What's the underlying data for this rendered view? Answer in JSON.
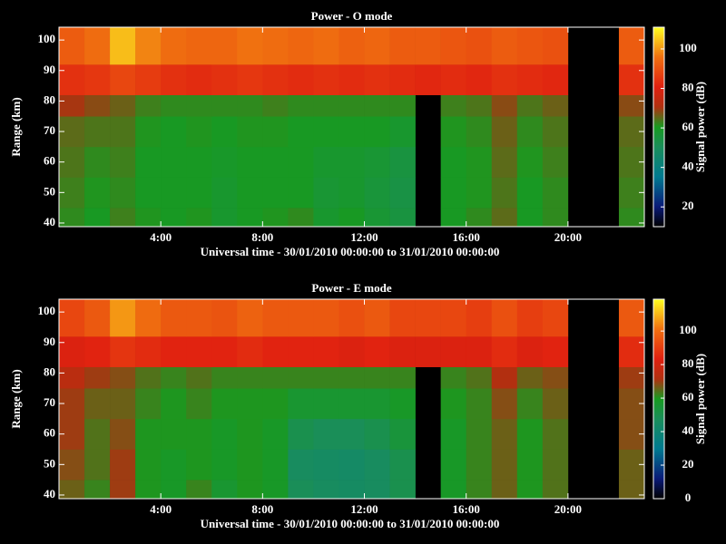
{
  "chart_data": [
    {
      "type": "heatmap",
      "title": "Power - O mode",
      "xlabel": "Universal time - 30/01/2010 00:00:00 to 31/01/2010 00:00:00",
      "ylabel": "Range (km)",
      "clabel": "Signal power (dB)",
      "xlim": [
        0,
        23
      ],
      "xticks": [
        {
          "value": 4,
          "label": "4:00"
        },
        {
          "value": 8,
          "label": "8:00"
        },
        {
          "value": 12,
          "label": "12:00"
        },
        {
          "value": 16,
          "label": "16:00"
        },
        {
          "value": 20,
          "label": "20:00"
        }
      ],
      "ylim": [
        38.8,
        104.2
      ],
      "yticks": [
        40,
        50,
        60,
        70,
        80,
        90,
        100
      ],
      "clim": [
        10,
        111
      ],
      "cticks": [
        20,
        40,
        60,
        80,
        100
      ],
      "colorscale": [
        [
          0,
          "#000000"
        ],
        [
          0.1,
          "#0a1a78"
        ],
        [
          0.25,
          "#007a90"
        ],
        [
          0.4,
          "#1a8e5a"
        ],
        [
          0.5,
          "#189a20"
        ],
        [
          0.6,
          "#b03010"
        ],
        [
          0.7,
          "#e02010"
        ],
        [
          0.85,
          "#f07010"
        ],
        [
          1,
          "#ffff20"
        ]
      ],
      "x_bins": [
        0,
        1,
        2,
        3,
        4,
        5,
        6,
        7,
        8,
        9,
        10,
        11,
        12,
        13,
        14,
        15,
        16,
        17,
        18,
        19,
        20,
        21,
        22,
        23
      ],
      "y_bins": [
        38.8,
        45,
        55,
        65,
        75,
        82,
        92,
        104.2
      ],
      "z": [
        [
          62,
          60,
          63,
          61,
          60,
          61,
          58,
          60,
          61,
          62,
          58,
          60,
          57,
          55,
          null,
          60,
          62,
          65,
          60,
          62,
          null,
          null,
          62
        ],
        [
          63,
          61,
          62,
          60,
          60,
          60,
          58,
          60,
          60,
          60,
          57,
          58,
          56,
          54,
          null,
          60,
          61,
          64,
          60,
          62,
          null,
          null,
          63
        ],
        [
          64,
          62,
          63,
          60,
          60,
          60,
          59,
          60,
          60,
          60,
          58,
          58,
          57,
          55,
          null,
          60,
          61,
          65,
          61,
          63,
          null,
          null,
          64
        ],
        [
          65,
          64,
          64,
          61,
          60,
          61,
          60,
          61,
          61,
          60,
          60,
          60,
          60,
          58,
          null,
          61,
          62,
          66,
          62,
          64,
          null,
          null,
          65
        ],
        [
          70,
          68,
          66,
          63,
          62,
          62,
          62,
          62,
          63,
          62,
          62,
          62,
          62,
          62,
          null,
          63,
          64,
          68,
          64,
          66,
          null,
          null,
          68
        ],
        [
          84,
          85,
          88,
          86,
          84,
          83,
          84,
          85,
          84,
          83,
          84,
          83,
          84,
          83,
          82,
          83,
          82,
          84,
          83,
          82,
          null,
          null,
          84
        ],
        [
          92,
          95,
          104,
          98,
          95,
          94,
          94,
          96,
          95,
          94,
          95,
          93,
          94,
          92,
          92,
          91,
          90,
          92,
          91,
          90,
          null,
          null,
          92
        ]
      ]
    },
    {
      "type": "heatmap",
      "title": "Power - E mode",
      "xlabel": "Universal time - 30/01/2010 00:00:00 to 31/01/2010 00:00:00",
      "ylabel": "Range (km)",
      "clabel": "Signal power (dB)",
      "xlim": [
        0,
        23
      ],
      "xticks": [
        {
          "value": 4,
          "label": "4:00"
        },
        {
          "value": 8,
          "label": "8:00"
        },
        {
          "value": 12,
          "label": "12:00"
        },
        {
          "value": 16,
          "label": "16:00"
        },
        {
          "value": 20,
          "label": "20:00"
        }
      ],
      "ylim": [
        38.8,
        104.2
      ],
      "yticks": [
        40,
        50,
        60,
        70,
        80,
        90,
        100
      ],
      "clim": [
        0,
        119
      ],
      "cticks": [
        0,
        20,
        40,
        60,
        80,
        100
      ],
      "colorscale": [
        [
          0,
          "#000000"
        ],
        [
          0.1,
          "#0a1a78"
        ],
        [
          0.25,
          "#007a90"
        ],
        [
          0.4,
          "#1a8e5a"
        ],
        [
          0.5,
          "#189a20"
        ],
        [
          0.6,
          "#b03010"
        ],
        [
          0.7,
          "#e02010"
        ],
        [
          0.85,
          "#f07010"
        ],
        [
          1,
          "#ffff20"
        ]
      ],
      "x_bins": [
        0,
        1,
        2,
        3,
        4,
        5,
        6,
        7,
        8,
        9,
        10,
        11,
        12,
        13,
        14,
        15,
        16,
        17,
        18,
        19,
        20,
        21,
        22,
        23
      ],
      "y_bins": [
        38.8,
        45,
        55,
        65,
        75,
        82,
        92,
        104.2
      ],
      "z": [
        [
          66,
          62,
          70,
          60,
          58,
          62,
          56,
          60,
          58,
          48,
          46,
          45,
          46,
          50,
          null,
          58,
          62,
          66,
          60,
          64,
          null,
          null,
          66
        ],
        [
          68,
          64,
          70,
          60,
          58,
          60,
          58,
          60,
          58,
          46,
          45,
          44,
          46,
          50,
          null,
          58,
          62,
          66,
          60,
          64,
          null,
          null,
          66
        ],
        [
          70,
          64,
          68,
          60,
          60,
          60,
          58,
          60,
          58,
          50,
          48,
          48,
          50,
          54,
          null,
          58,
          62,
          66,
          60,
          64,
          null,
          null,
          68
        ],
        [
          70,
          66,
          66,
          62,
          60,
          62,
          60,
          60,
          60,
          56,
          56,
          56,
          56,
          58,
          null,
          60,
          62,
          68,
          62,
          66,
          null,
          null,
          68
        ],
        [
          74,
          70,
          68,
          64,
          62,
          64,
          62,
          62,
          62,
          62,
          62,
          62,
          62,
          62,
          null,
          62,
          64,
          72,
          66,
          68,
          null,
          null,
          70
        ],
        [
          82,
          84,
          88,
          86,
          84,
          84,
          84,
          86,
          84,
          84,
          84,
          82,
          84,
          82,
          82,
          82,
          82,
          86,
          82,
          84,
          null,
          null,
          86
        ],
        [
          92,
          96,
          106,
          100,
          96,
          96,
          95,
          98,
          96,
          96,
          96,
          94,
          96,
          92,
          92,
          92,
          90,
          94,
          90,
          92,
          null,
          null,
          96
        ]
      ]
    }
  ]
}
